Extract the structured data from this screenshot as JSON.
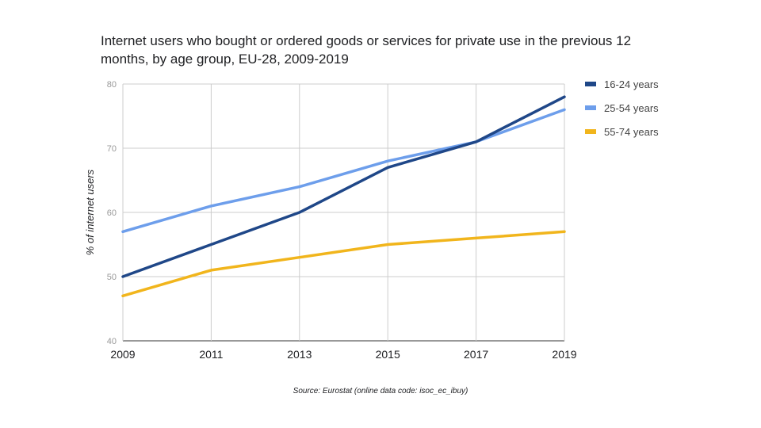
{
  "chart_data": {
    "type": "line",
    "title_lines": [
      "Internet users who bought or ordered goods or services for private use in the previous 12",
      "months, by age group, EU-28, 2009-2019"
    ],
    "xlabel": "",
    "ylabel": "% of internet users",
    "x": [
      "2009",
      "2011",
      "2013",
      "2015",
      "2017",
      "2019"
    ],
    "yticks": [
      "40",
      "50",
      "60",
      "70",
      "80"
    ],
    "ylim": [
      40,
      80
    ],
    "grid": true,
    "legend_position": "right",
    "series": [
      {
        "name": "16-24 years",
        "color": "#1f4788",
        "values": [
          50,
          55,
          60,
          67,
          71,
          78
        ]
      },
      {
        "name": "25-54 years",
        "color": "#6d9eeb",
        "values": [
          57,
          61,
          64,
          68,
          71,
          76
        ]
      },
      {
        "name": "55-74 years",
        "color": "#f1b51c",
        "values": [
          47,
          51,
          53,
          55,
          56,
          57
        ]
      }
    ],
    "source": "Source: Eurostat (online data code: isoc_ec_ibuy)"
  }
}
